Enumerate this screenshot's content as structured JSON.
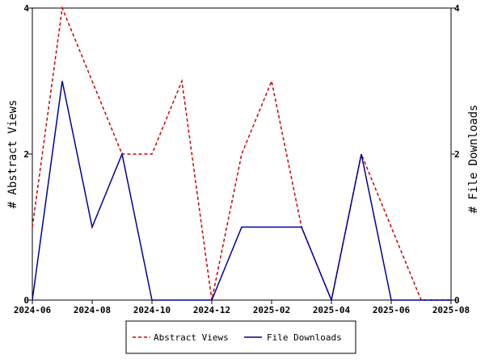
{
  "chart_data": {
    "type": "line",
    "x": [
      "2024-06",
      "2024-07",
      "2024-08",
      "2024-09",
      "2024-10",
      "2024-11",
      "2024-12",
      "2025-01",
      "2025-02",
      "2025-03",
      "2025-04",
      "2025-05",
      "2025-06",
      "2025-07",
      "2025-08"
    ],
    "x_ticks": [
      "2024-06",
      "2024-08",
      "2024-10",
      "2024-12",
      "2025-02",
      "2025-04",
      "2025-06",
      "2025-08"
    ],
    "series": [
      {
        "name": "Abstract Views",
        "axis": "left",
        "color": "#cc0000",
        "style": "dashed",
        "values": [
          1,
          4,
          3,
          2,
          2,
          3,
          0,
          2,
          3,
          1,
          0,
          2,
          1,
          0,
          0
        ]
      },
      {
        "name": "File Downloads",
        "axis": "right",
        "color": "#000099",
        "style": "solid",
        "values": [
          0,
          3,
          1,
          2,
          0,
          0,
          0,
          1,
          1,
          1,
          0,
          2,
          0,
          0,
          0
        ]
      }
    ],
    "ylabel_left": "# Abstract Views",
    "ylabel_right": "# File Downloads",
    "ylim": [
      0,
      4
    ],
    "y_ticks": [
      0,
      2,
      4
    ],
    "grid": false,
    "legend": "bottom"
  }
}
